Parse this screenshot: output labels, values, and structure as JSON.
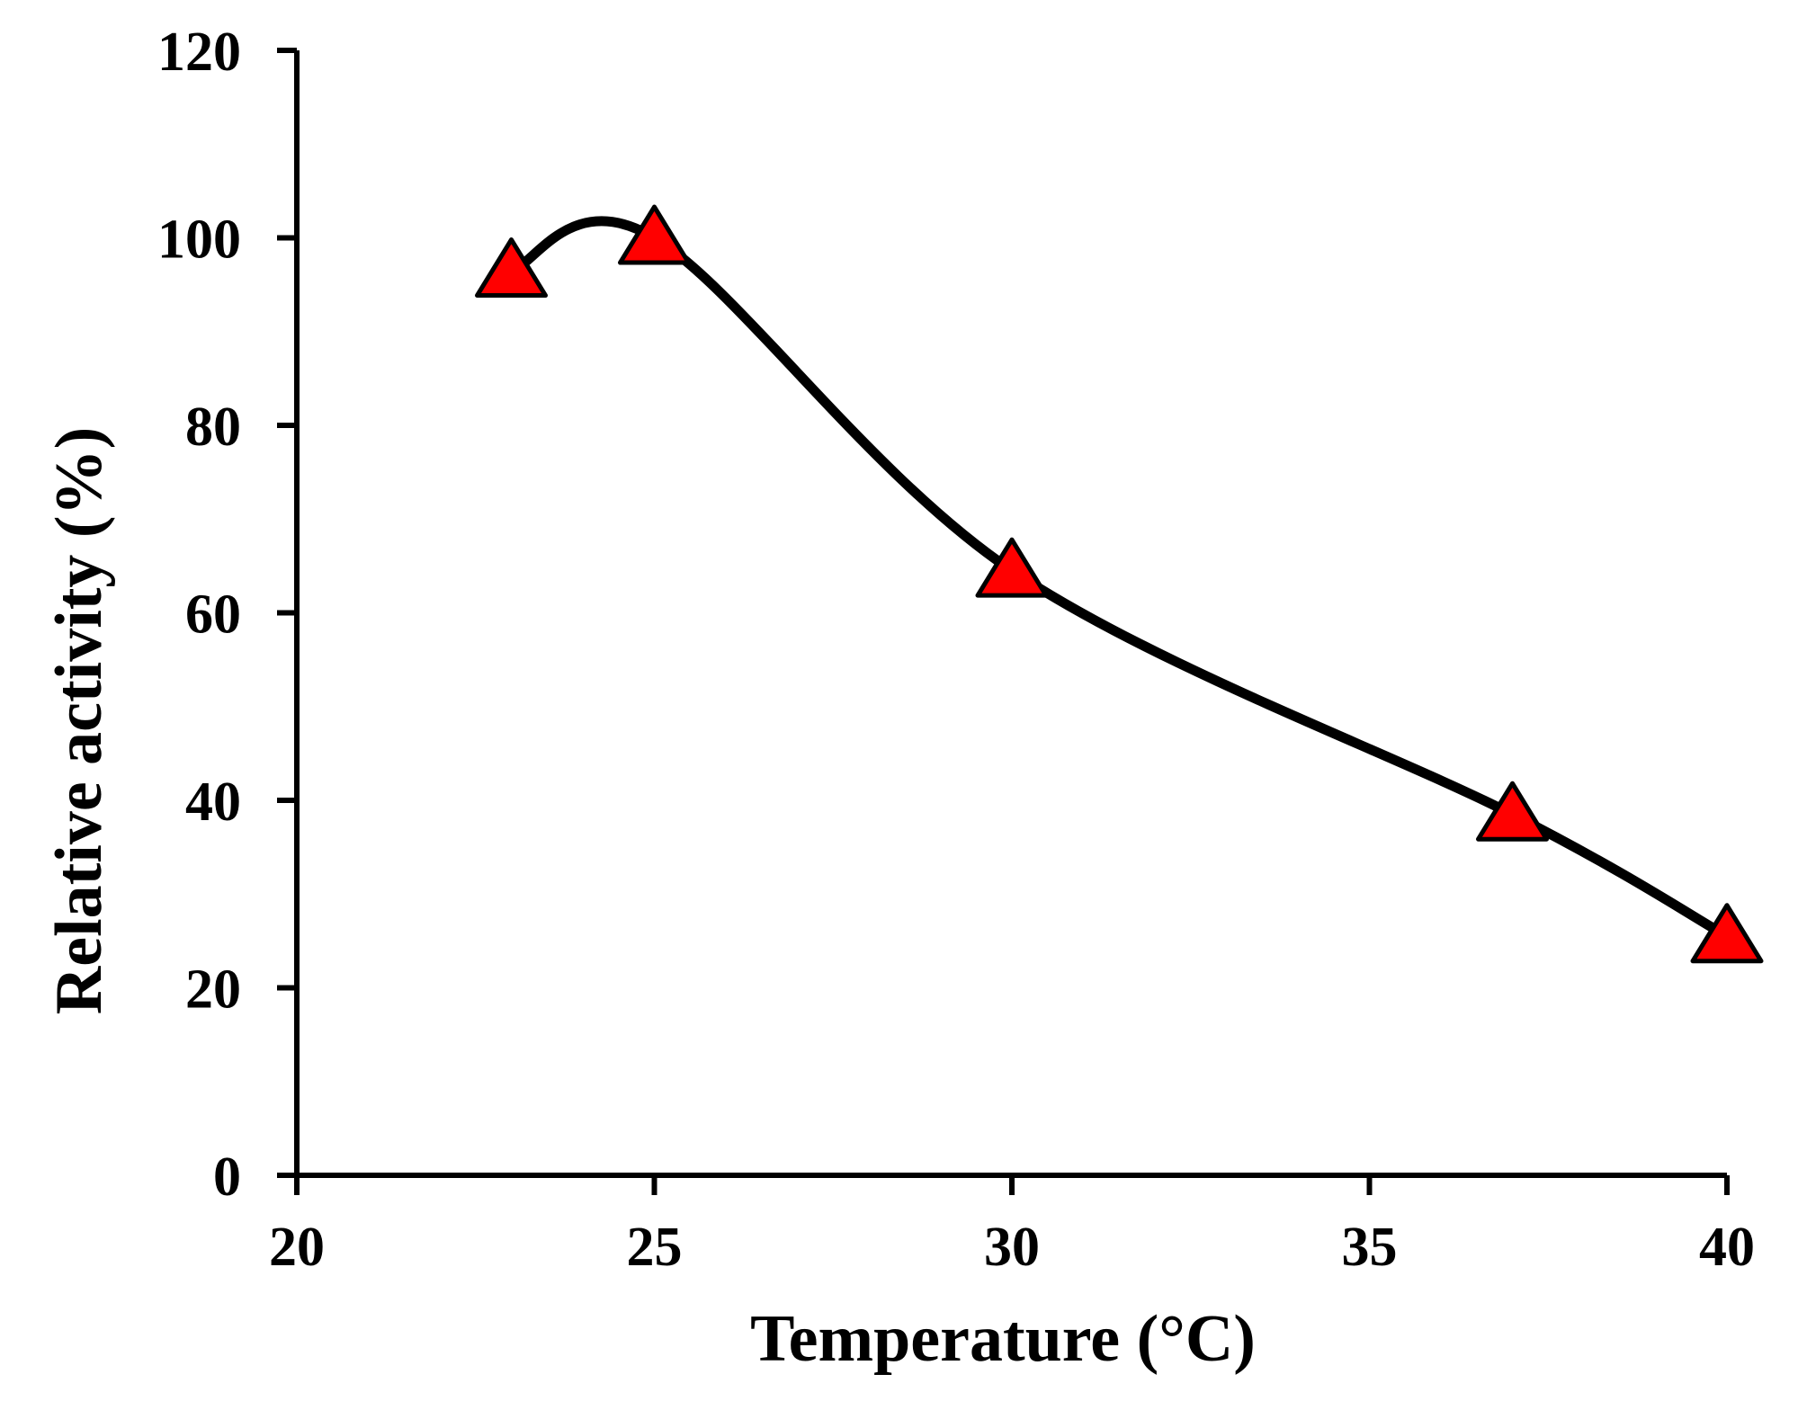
{
  "chart_data": {
    "type": "line",
    "title": "",
    "xlabel": "Temperature (°C)",
    "ylabel": "Relative activity (%)",
    "xlim": [
      20,
      40
    ],
    "ylim": [
      0,
      120
    ],
    "xticks": [
      20,
      25,
      30,
      35,
      40
    ],
    "yticks": [
      0,
      20,
      40,
      60,
      80,
      100,
      120
    ],
    "x_tick_labels": [
      "20",
      "25",
      "30",
      "35",
      "40"
    ],
    "y_tick_labels": [
      "0",
      "20",
      "40",
      "60",
      "80",
      "100",
      "120"
    ],
    "grid": false,
    "legend": "none",
    "series": [
      {
        "name": "Relative activity",
        "x": [
          23,
          25,
          30,
          37,
          40
        ],
        "values": [
          96.5,
          100,
          64.5,
          38.5,
          25.5
        ],
        "line_color": "#000000",
        "marker": "triangle",
        "marker_color": "#ff0000",
        "smooth": true
      }
    ]
  }
}
